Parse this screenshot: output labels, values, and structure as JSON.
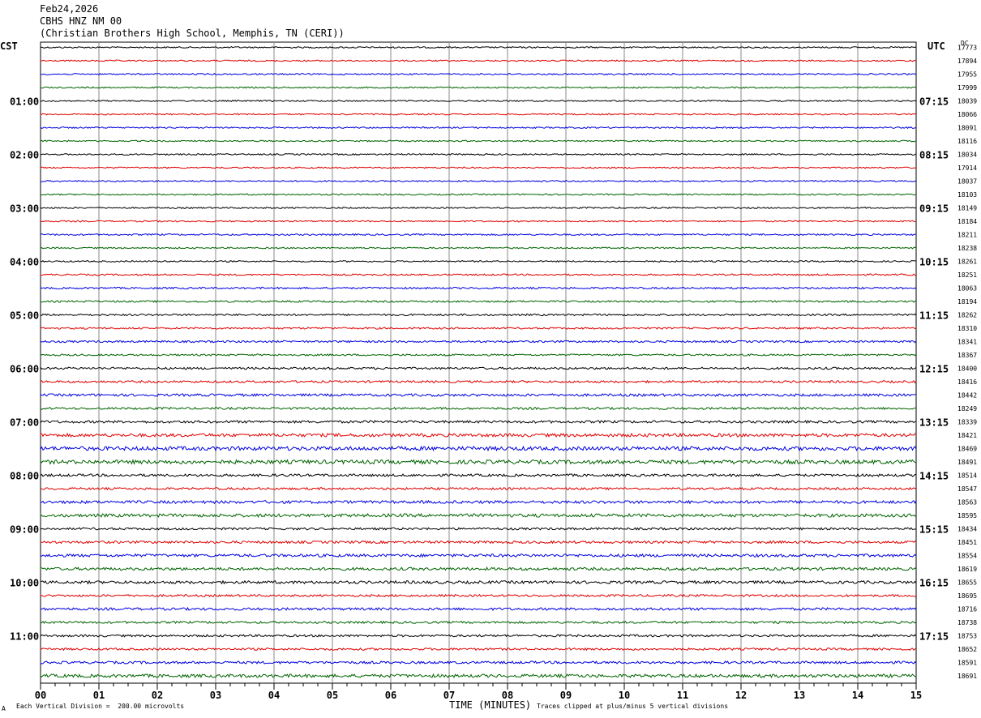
{
  "header": {
    "date": "Feb24,2026",
    "station": "CBHS HNZ NM 00",
    "location": "(Christian Brothers High School, Memphis, TN (CERI))"
  },
  "left_zone_label": "CST",
  "right_zone_label": "UTC",
  "right_column_label": "DC",
  "footer": {
    "scale_note": "Each Vertical Division =  200.00 microvolts",
    "xlabel": "TIME (MINUTES)",
    "clip_note": "Traces clipped at plus/minus 5 vertical divisions",
    "corner_mark": "A"
  },
  "colors": {
    "trace_cycle": [
      "#000000",
      "#e00000",
      "#0000e0",
      "#006400"
    ],
    "grid": "#888888"
  },
  "chart_data": {
    "type": "line",
    "title": "CBHS HNZ NM 00",
    "xlabel": "TIME (MINUTES)",
    "xlim": [
      0,
      15
    ],
    "x_ticks": [
      "00",
      "01",
      "02",
      "03",
      "04",
      "05",
      "06",
      "07",
      "08",
      "09",
      "10",
      "11",
      "12",
      "13",
      "14",
      "15"
    ],
    "left_hour_labels": [
      "01:00",
      "02:00",
      "03:00",
      "04:00",
      "05:00",
      "06:00",
      "07:00",
      "08:00",
      "09:00",
      "10:00",
      "11:00"
    ],
    "right_hour_labels": [
      "07:15",
      "08:15",
      "09:15",
      "10:15",
      "11:15",
      "12:15",
      "13:15",
      "14:15",
      "15:15",
      "16:15",
      "17:15"
    ],
    "rows_per_hour": 4,
    "trace_count": 48,
    "dc_offsets": [
      17773,
      17894,
      17955,
      17999,
      18039,
      18066,
      18091,
      18116,
      18034,
      17914,
      18037,
      18103,
      18149,
      18184,
      18211,
      18238,
      18261,
      18251,
      18063,
      18194,
      18262,
      18310,
      18341,
      18367,
      18400,
      18416,
      18442,
      18249,
      18339,
      18421,
      18469,
      18491,
      18514,
      18547,
      18563,
      18595,
      18434,
      18451,
      18554,
      18619,
      18655,
      18695,
      18716,
      18738,
      18753,
      18652,
      18591,
      18691
    ],
    "trace_noise": [
      0.4,
      0.4,
      0.4,
      0.4,
      0.4,
      0.4,
      0.4,
      0.4,
      0.4,
      0.4,
      0.4,
      0.4,
      0.4,
      0.4,
      0.45,
      0.4,
      0.4,
      0.45,
      0.5,
      0.5,
      0.5,
      0.5,
      0.55,
      0.5,
      0.6,
      0.6,
      0.7,
      0.6,
      0.7,
      0.9,
      1.1,
      1.1,
      0.7,
      0.6,
      0.8,
      0.9,
      0.6,
      0.7,
      0.8,
      0.8,
      0.8,
      0.6,
      0.7,
      0.6,
      0.6,
      0.6,
      0.7,
      0.9
    ]
  }
}
